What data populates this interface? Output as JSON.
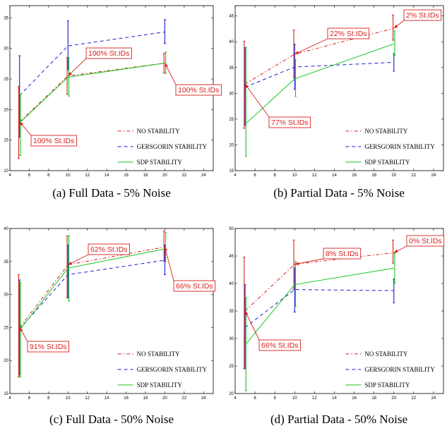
{
  "legend": {
    "no_stability": "NO STABILITY",
    "gersgorin": "GERSGORIN STABILITY",
    "sdp": "SDP STABILITY"
  },
  "colors": {
    "no_stability": "#d8201c",
    "gersgorin": "#1a1ad8",
    "sdp": "#16c81c",
    "annotation": "#d8201c"
  },
  "chart_data": [
    {
      "type": "line",
      "caption": "(a) Full Data - 5% Noise",
      "xlim": [
        4,
        25
      ],
      "ylim": [
        10,
        37
      ],
      "xticks": [
        4,
        6,
        8,
        10,
        12,
        14,
        16,
        18,
        20,
        22,
        24
      ],
      "yticks": [
        10,
        15,
        20,
        25,
        30,
        35
      ],
      "legend_position": "bottom-right",
      "x": [
        5,
        10,
        20
      ],
      "series": [
        {
          "name": "NO STABILITY",
          "values": [
            18.0,
            25.5,
            27.6
          ],
          "err_low": [
            12.0,
            22.5,
            26.0
          ],
          "err_high": [
            23.8,
            28.5,
            29.2
          ]
        },
        {
          "name": "GERSGORIN STABILITY",
          "values": [
            22.3,
            30.4,
            32.7
          ],
          "err_low": [
            15.5,
            26.5,
            30.8
          ],
          "err_high": [
            28.8,
            34.5,
            34.7
          ]
        },
        {
          "name": "SDP STABILITY",
          "values": [
            17.8,
            25.3,
            27.6
          ],
          "err_low": [
            12.5,
            22.2,
            25.9
          ],
          "err_high": [
            22.5,
            28.5,
            29.4
          ]
        }
      ],
      "annotations": [
        {
          "text": "100% St.IDs",
          "x": 10,
          "y": 25.5
        },
        {
          "text": "100% St.IDs",
          "x": 20,
          "y": 27.6
        },
        {
          "text": "100% St.IDs",
          "x": 5,
          "y": 18.0
        }
      ]
    },
    {
      "type": "line",
      "caption": "(b) Partial Data - 5% Noise",
      "xlim": [
        4,
        25
      ],
      "ylim": [
        15,
        47
      ],
      "xticks": [
        4,
        6,
        8,
        10,
        12,
        14,
        16,
        18,
        20,
        22,
        24
      ],
      "yticks": [
        15,
        20,
        25,
        30,
        35,
        40,
        45
      ],
      "legend_position": "bottom-right",
      "x": [
        5,
        10,
        20
      ],
      "series": [
        {
          "name": "NO STABILITY",
          "values": [
            31.8,
            37.6,
            42.6
          ],
          "err_low": [
            23.2,
            33.0,
            40.3
          ],
          "err_high": [
            40.1,
            42.3,
            45.2
          ]
        },
        {
          "name": "GERSGORIN STABILITY",
          "values": [
            31.2,
            35.1,
            36.0
          ],
          "err_low": [
            23.8,
            30.8,
            34.3
          ],
          "err_high": [
            38.9,
            39.5,
            37.7
          ]
        },
        {
          "name": "SDP STABILITY",
          "values": [
            24.0,
            32.8,
            39.6
          ],
          "err_low": [
            17.8,
            29.4,
            37.3
          ],
          "err_high": [
            38.9,
            36.6,
            42.1
          ]
        }
      ],
      "annotations": [
        {
          "text": "22% St.IDs",
          "x": 10,
          "y": 37.6
        },
        {
          "text": "2% St.IDs",
          "x": 20,
          "y": 42.6
        },
        {
          "text": "77% St.IDs",
          "x": 5,
          "y": 31.8
        }
      ]
    },
    {
      "type": "line",
      "caption": "(c) Full Data - 50% Noise",
      "xlim": [
        4,
        25
      ],
      "ylim": [
        15,
        40
      ],
      "xticks": [
        4,
        6,
        8,
        10,
        12,
        14,
        16,
        18,
        20,
        22,
        24
      ],
      "yticks": [
        15,
        20,
        25,
        30,
        35,
        40
      ],
      "legend_position": "bottom-right",
      "x": [
        5,
        10,
        20
      ],
      "series": [
        {
          "name": "NO STABILITY",
          "values": [
            25.0,
            34.5,
            37.2
          ],
          "err_low": [
            17.5,
            29.5,
            35.0
          ],
          "err_high": [
            33.0,
            38.9,
            39.6
          ]
        },
        {
          "name": "GERSGORIN STABILITY",
          "values": [
            24.8,
            33.0,
            35.2
          ],
          "err_low": [
            17.8,
            29.5,
            33.0
          ],
          "err_high": [
            32.2,
            37.5,
            37.5
          ]
        },
        {
          "name": "SDP STABILITY",
          "values": [
            24.6,
            34.0,
            36.9
          ],
          "err_low": [
            17.5,
            29.0,
            35.0
          ],
          "err_high": [
            31.8,
            38.9,
            39.4
          ]
        }
      ],
      "annotations": [
        {
          "text": "62% St.IDs",
          "x": 10,
          "y": 34.5
        },
        {
          "text": "66% St.IDs",
          "x": 20,
          "y": 37.2
        },
        {
          "text": "91% St.IDs",
          "x": 5,
          "y": 25.0
        }
      ]
    },
    {
      "type": "line",
      "caption": "(d) Partial Data - 50% Noise",
      "xlim": [
        4,
        25
      ],
      "ylim": [
        20,
        50
      ],
      "xticks": [
        4,
        6,
        8,
        10,
        12,
        14,
        16,
        18,
        20,
        22,
        24
      ],
      "yticks": [
        20,
        25,
        30,
        35,
        40,
        45,
        50
      ],
      "legend_position": "bottom-right",
      "x": [
        5,
        10,
        20
      ],
      "series": [
        {
          "name": "NO STABILITY",
          "values": [
            35.0,
            43.5,
            45.6
          ],
          "err_low": [
            24.5,
            38.9,
            43.7
          ],
          "err_high": [
            44.8,
            47.9,
            47.9
          ]
        },
        {
          "name": "GERSGORIN STABILITY",
          "values": [
            32.0,
            38.9,
            38.7
          ],
          "err_low": [
            24.5,
            34.8,
            36.5
          ],
          "err_high": [
            39.8,
            42.8,
            40.8
          ]
        },
        {
          "name": "SDP STABILITY",
          "values": [
            28.8,
            39.8,
            42.8
          ],
          "err_low": [
            20.5,
            35.8,
            40.0
          ],
          "err_high": [
            37.5,
            44.0,
            45.5
          ]
        }
      ],
      "annotations": [
        {
          "text": "8% St.IDs",
          "x": 10,
          "y": 43.5
        },
        {
          "text": "0% St.IDs",
          "x": 20,
          "y": 45.6
        },
        {
          "text": "66% St.IDs",
          "x": 5,
          "y": 35.0
        }
      ]
    }
  ]
}
